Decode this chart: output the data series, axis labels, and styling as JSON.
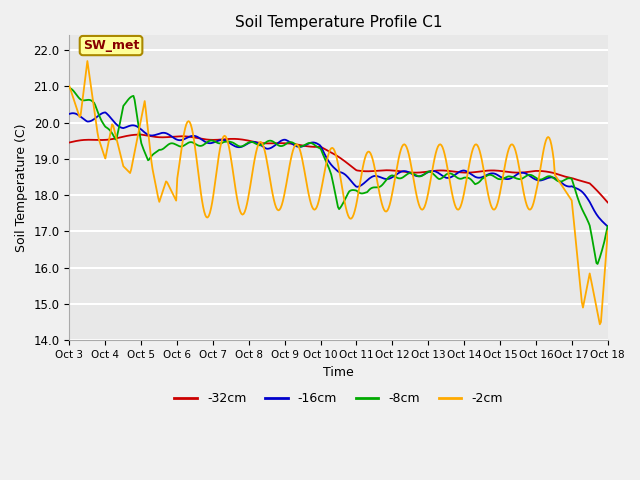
{
  "title": "Soil Temperature Profile C1",
  "xlabel": "Time",
  "ylabel": "Soil Temperature (C)",
  "ylim": [
    14.0,
    22.4
  ],
  "yticks": [
    14.0,
    15.0,
    16.0,
    17.0,
    18.0,
    19.0,
    20.0,
    21.0,
    22.0
  ],
  "bg_color": "#f0f0f0",
  "plot_bg_color": "#e8e8e8",
  "grid_color": "#ffffff",
  "colors": {
    "-32cm": "#cc0000",
    "-16cm": "#0000cc",
    "-8cm": "#00aa00",
    "-2cm": "#ffaa00"
  },
  "annotation": "SW_met",
  "annotation_box_color": "#ffff99",
  "annotation_border_color": "#aa8800",
  "xtick_labels": [
    "Oct 3",
    "Oct 4",
    "Oct 5",
    "Oct 6",
    "Oct 7",
    "Oct 8",
    "Oct 9",
    "Oct 10",
    "Oct 11",
    "Oct 12",
    "Oct 13",
    "Oct 14",
    "Oct 15",
    "Oct 16",
    "Oct 17",
    "Oct 18"
  ],
  "legend_entries": [
    "-32cm",
    "-16cm",
    "-8cm",
    "-2cm"
  ]
}
